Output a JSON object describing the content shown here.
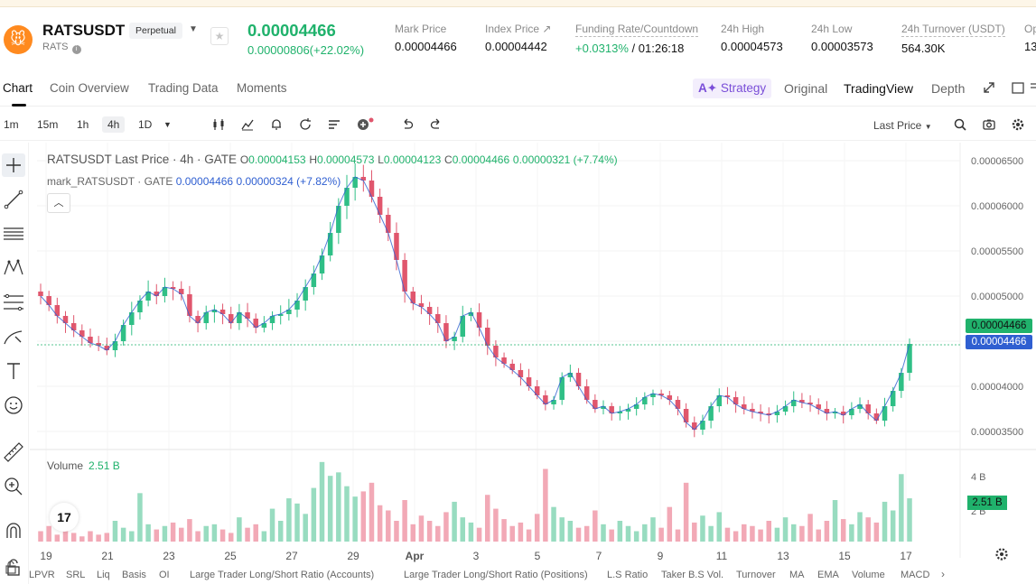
{
  "header": {
    "symbol": "RATSUSDT",
    "contract_type": "Perpetual",
    "sub_label": "RATS",
    "last_price": "0.00004466",
    "change": "0.00000806(+22.02%)",
    "stats": [
      {
        "label": "Mark Price",
        "value": "0.00004466"
      },
      {
        "label": "Index Price ↗",
        "value": "0.00004442"
      },
      {
        "label": "Funding Rate/Countdown",
        "value_rate": "+0.0313%",
        "value_countdown": "/ 01:26:18"
      },
      {
        "label": "24h High",
        "value": "0.00004573"
      },
      {
        "label": "24h Low",
        "value": "0.00003573"
      },
      {
        "label": "24h Turnover (USDT)",
        "value": "564.30K"
      },
      {
        "label": "Op",
        "value": "13"
      }
    ]
  },
  "tabs": {
    "left": [
      "Chart",
      "Coin Overview",
      "Trading Data",
      "Moments"
    ],
    "strategy": "Strategy",
    "right": [
      "Original",
      "TradingView",
      "Depth"
    ]
  },
  "toolbar": {
    "intervals": [
      "1m",
      "15m",
      "1h",
      "4h",
      "1D"
    ],
    "selected_interval": "4h",
    "price_source": "Last Price"
  },
  "legend": {
    "title": "RATSUSDT Last Price · 4h · GATE",
    "o_label": "O",
    "o": "0.00004153",
    "h_label": "H",
    "h": "0.00004573",
    "l_label": "L",
    "l": "0.00004123",
    "c_label": "C",
    "c": "0.00004466",
    "chg": "0.00000321 (+7.74%)",
    "mark_title": "mark_RATSUSDT · GATE",
    "mark_value": "0.00004466",
    "mark_chg": "0.00000324 (+7.82%)"
  },
  "volume": {
    "label": "Volume",
    "value": "2.51 B",
    "axis_labels": [
      "4 B",
      "2 B"
    ]
  },
  "price_axis": {
    "labels": [
      "0.00006500",
      "0.00006000",
      "0.00005500",
      "0.00005000",
      "0.00004000",
      "0.00003500"
    ],
    "last_tag": "0.00004466",
    "mark_tag": "0.00004466"
  },
  "time_axis": [
    "19",
    "21",
    "23",
    "25",
    "27",
    "29",
    "Apr",
    "3",
    "5",
    "7",
    "9",
    "11",
    "13",
    "15",
    "17"
  ],
  "indicators": [
    "LPVR",
    "SRL",
    "Liq",
    "Basis",
    "OI",
    "Large Trader Long/Short Ratio (Accounts)",
    "Large Trader Long/Short Ratio (Positions)",
    "L.S Ratio",
    "Taker B.S Vol.",
    "Turnover",
    "MA",
    "EMA",
    "Volume",
    "MACD"
  ],
  "colors": {
    "up": "#2fbf86",
    "down": "#e0566d",
    "accent": "#20b26c",
    "mark": "#2f5fd1"
  },
  "chart_data": {
    "type": "candlestick",
    "interval": "4h",
    "ylim": [
      3.3e-05,
      6.7e-05
    ],
    "ohlc_path": [
      5e-05,
      4.9e-05,
      4.78e-05,
      4.7e-05,
      4.62e-05,
      4.55e-05,
      4.48e-05,
      4.45e-05,
      4.4e-05,
      4.5e-05,
      4.68e-05,
      4.82e-05,
      4.95e-05,
      5.05e-05,
      5e-05,
      5.1e-05,
      5.08e-05,
      5.02e-05,
      4.78e-05,
      4.7e-05,
      4.82e-05,
      4.85e-05,
      4.8e-05,
      4.7e-05,
      4.82e-05,
      4.75e-05,
      4.65e-05,
      4.7e-05,
      4.78e-05,
      4.8e-05,
      4.85e-05,
      4.95e-05,
      5.1e-05,
      5.25e-05,
      5.45e-05,
      5.7e-05,
      6e-05,
      6.2e-05,
      6.32e-05,
      6.28e-05,
      6.1e-05,
      5.9e-05,
      5.7e-05,
      5.4e-05,
      5.05e-05,
      4.92e-05,
      4.88e-05,
      4.8e-05,
      4.7e-05,
      4.5e-05,
      4.55e-05,
      4.78e-05,
      4.82e-05,
      4.65e-05,
      4.45e-05,
      4.32e-05,
      4.25e-05,
      4.18e-05,
      4.1e-05,
      4e-05,
      3.9e-05,
      3.8e-05,
      3.85e-05,
      4.1e-05,
      4.15e-05,
      4e-05,
      3.85e-05,
      3.75e-05,
      3.78e-05,
      3.7e-05,
      3.72e-05,
      3.75e-05,
      3.8e-05,
      3.88e-05,
      3.92e-05,
      3.9e-05,
      3.85e-05,
      3.75e-05,
      3.6e-05,
      3.52e-05,
      3.62e-05,
      3.78e-05,
      3.9e-05,
      3.88e-05,
      3.8e-05,
      3.75e-05,
      3.72e-05,
      3.7e-05,
      3.68e-05,
      3.72e-05,
      3.78e-05,
      3.85e-05,
      3.82e-05,
      3.8e-05,
      3.75e-05,
      3.7e-05,
      3.72e-05,
      3.68e-05,
      3.75e-05,
      3.8e-05,
      3.7e-05,
      3.62e-05,
      3.78e-05,
      3.95e-05,
      4.15e-05,
      4.47e-05
    ],
    "volume_path": [
      0.6,
      0.9,
      0.4,
      0.7,
      0.5,
      0.3,
      0.6,
      0.4,
      0.5,
      1.2,
      0.8,
      0.6,
      2.8,
      1.0,
      0.7,
      0.9,
      1.1,
      0.8,
      1.3,
      0.6,
      0.9,
      1.0,
      0.7,
      0.5,
      1.4,
      0.8,
      1.0,
      0.6,
      1.9,
      1.2,
      2.5,
      2.2,
      1.6,
      3.1,
      4.6,
      3.8,
      4.0,
      3.2,
      2.6,
      2.9,
      3.4,
      2.1,
      1.8,
      1.2,
      2.4,
      1.0,
      1.5,
      1.2,
      0.9,
      1.7,
      2.3,
      1.4,
      1.1,
      0.8,
      2.7,
      1.9,
      1.3,
      0.9,
      1.1,
      0.7,
      1.6,
      4.2,
      2.0,
      1.4,
      1.2,
      0.8,
      0.9,
      1.8,
      1.0,
      0.7,
      1.2,
      0.9,
      0.6,
      1.0,
      1.4,
      0.8,
      2.0,
      0.7,
      3.4,
      1.1,
      1.5,
      0.9,
      1.7,
      0.8,
      0.6,
      1.0,
      0.9,
      0.7,
      1.2,
      0.8,
      1.4,
      1.0,
      0.9,
      1.6,
      0.7,
      1.2,
      2.4,
      1.3,
      1.0,
      1.7,
      1.4,
      1.1,
      2.3,
      1.8,
      3.9,
      2.5
    ]
  }
}
